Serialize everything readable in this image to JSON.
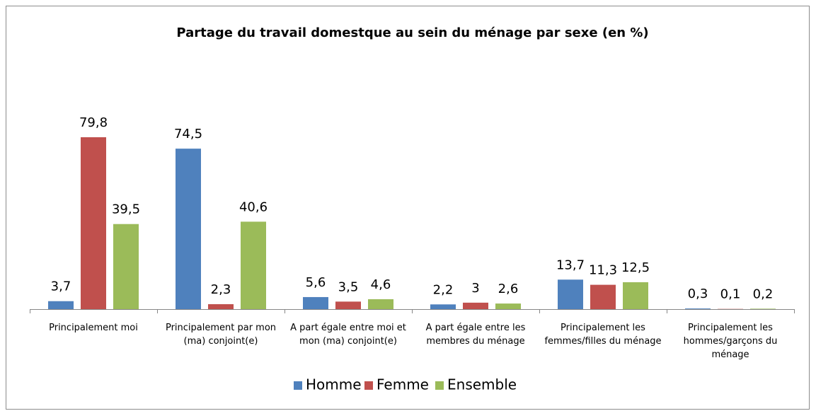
{
  "chart_data": {
    "type": "bar",
    "title": "Partage du travail domestque au sein du ménage par sexe (en %)",
    "categories": [
      "Principalement moi",
      "Principalement par mon (ma) conjoint(e)",
      "A part égale entre moi et mon (ma) conjoint(e)",
      "A part égale entre les membres du ménage",
      "Principalement les femmes/filles du ménage",
      "Principalement les hommes/garçons du ménage"
    ],
    "series": [
      {
        "name": "Homme",
        "color": "#4f81bd",
        "values": [
          3.7,
          74.5,
          5.6,
          2.2,
          13.7,
          0.3
        ],
        "value_labels": [
          "3,7",
          "74,5",
          "5,6",
          "2,2",
          "13,7",
          "0,3"
        ]
      },
      {
        "name": "Femme",
        "color": "#c0504d",
        "values": [
          79.8,
          2.3,
          3.5,
          3,
          11.3,
          0.1
        ],
        "value_labels": [
          "79,8",
          "2,3",
          "3,5",
          "3",
          "11,3",
          "0,1"
        ]
      },
      {
        "name": "Ensemble",
        "color": "#9bbb59",
        "values": [
          39.5,
          40.6,
          4.6,
          2.6,
          12.5,
          0.2
        ],
        "value_labels": [
          "39,5",
          "40,6",
          "4,6",
          "2,6",
          "12,5",
          "0,2"
        ]
      }
    ],
    "legend": "bottom"
  }
}
